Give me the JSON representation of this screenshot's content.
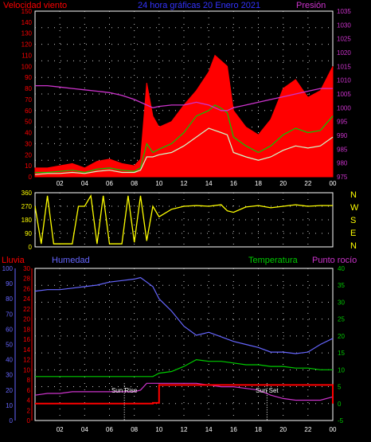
{
  "header": {
    "left": "Velocidad viento",
    "center": "24 hora gráficas   20 Enero 2021",
    "right": "Presión"
  },
  "colors": {
    "wind": "#ff0000",
    "gust": "#ff0000",
    "avg_wind": "#00cc00",
    "wind_white": "#ccffcc",
    "pressure": "#cc33cc",
    "direction": "#ffff00",
    "rain": "#ff0000",
    "humidity": "#6666ff",
    "temperature": "#00cc00",
    "dewpoint": "#cc33cc",
    "grid": "#cccccc",
    "sun": "#ffffff"
  },
  "chart_data": [
    {
      "type": "line",
      "name": "wind-pressure",
      "left_ticks": [
        "0",
        "10",
        "20",
        "30",
        "40",
        "50",
        "60",
        "70",
        "80",
        "90",
        "100",
        "110",
        "120",
        "130",
        "140",
        "150"
      ],
      "right_ticks": [
        "975",
        "980",
        "985",
        "990",
        "995",
        "1000",
        "1005",
        "1010",
        "1015",
        "1020",
        "1025",
        "1030",
        "1035"
      ],
      "x_ticks": [
        "02",
        "04",
        "06",
        "08",
        "10",
        "12",
        "14",
        "16",
        "18",
        "20",
        "22",
        "00"
      ],
      "ylim_left": [
        0,
        150
      ],
      "ylim_right": [
        975,
        1035
      ],
      "x_hours": [
        0,
        1,
        2,
        3,
        4,
        5,
        6,
        7,
        8,
        8.5,
        9,
        9.5,
        10,
        11,
        12,
        13,
        14,
        14.5,
        15,
        15.5,
        16,
        17,
        18,
        19,
        20,
        21,
        22,
        23,
        24
      ],
      "gust": [
        8,
        8,
        10,
        12,
        8,
        14,
        16,
        12,
        10,
        16,
        85,
        55,
        45,
        50,
        65,
        78,
        95,
        110,
        105,
        100,
        60,
        45,
        38,
        52,
        80,
        88,
        72,
        78,
        100
      ],
      "avg_wind": [
        4,
        4,
        5,
        6,
        4,
        7,
        8,
        6,
        5,
        8,
        30,
        22,
        25,
        30,
        40,
        55,
        60,
        65,
        62,
        58,
        36,
        28,
        22,
        28,
        38,
        44,
        40,
        42,
        55
      ],
      "white_wind": [
        2,
        3,
        3,
        4,
        3,
        5,
        6,
        4,
        4,
        6,
        18,
        18,
        20,
        22,
        28,
        36,
        44,
        42,
        40,
        38,
        22,
        18,
        15,
        18,
        24,
        28,
        26,
        28,
        36
      ],
      "pressure": [
        1008,
        1008,
        1007.5,
        1007,
        1006.5,
        1006,
        1005.5,
        1004.5,
        1003,
        1002,
        1001,
        1000,
        1000.5,
        1001,
        1001,
        1002,
        1001,
        1000,
        999,
        999,
        1000,
        1001,
        1002,
        1003,
        1004,
        1005,
        1006,
        1007,
        1007
      ]
    },
    {
      "type": "line",
      "name": "wind-direction",
      "left_ticks": [
        "0",
        "90",
        "180",
        "270",
        "360"
      ],
      "right_labels": [
        "N",
        "W",
        "S",
        "E",
        "N"
      ],
      "ylim": [
        0,
        360
      ],
      "x_hours": [
        0,
        0.5,
        1,
        1.5,
        2,
        3,
        3.5,
        4,
        4.5,
        5,
        5.5,
        6,
        7,
        7.5,
        8,
        8.5,
        9,
        9.5,
        10,
        11,
        12,
        13,
        14,
        15,
        15.5,
        16,
        17,
        18,
        19,
        20,
        21,
        22,
        23,
        24
      ],
      "values": [
        270,
        20,
        340,
        20,
        20,
        20,
        270,
        270,
        340,
        20,
        340,
        20,
        20,
        340,
        30,
        340,
        40,
        270,
        200,
        250,
        270,
        275,
        270,
        280,
        240,
        230,
        265,
        275,
        260,
        270,
        280,
        270,
        275,
        275
      ]
    },
    {
      "type": "line",
      "name": "rain-humidity-temp",
      "header": {
        "rain": "Lluvia",
        "humidity": "Humedad",
        "temperature": "Temperatura",
        "dewpoint": "Punto rocío"
      },
      "humidity_ticks": [
        "0",
        "10",
        "20",
        "30",
        "40",
        "50",
        "60",
        "70",
        "80",
        "90",
        "100"
      ],
      "rain_ticks": [
        "0",
        "2",
        "4",
        "6",
        "8",
        "10",
        "12",
        "14",
        "16",
        "18",
        "20",
        "22",
        "24",
        "26",
        "28",
        "30"
      ],
      "temp_ticks": [
        "-5",
        "0",
        "5",
        "10",
        "15",
        "20",
        "25",
        "30",
        "35",
        "40"
      ],
      "x_ticks": [
        "02",
        "04",
        "06",
        "08",
        "10",
        "12",
        "14",
        "16",
        "18",
        "20",
        "22",
        "00"
      ],
      "ylim_humidity": [
        0,
        100
      ],
      "ylim_temp": [
        -5,
        40
      ],
      "x_hours": [
        0,
        1,
        2,
        3,
        4,
        5,
        6,
        7,
        8,
        8.5,
        9,
        9.5,
        10,
        11,
        12,
        13,
        14,
        15,
        16,
        17,
        18,
        19,
        20,
        21,
        22,
        23,
        24
      ],
      "humidity": [
        85,
        86,
        86,
        87,
        88,
        89,
        91,
        92,
        93,
        94,
        91,
        88,
        80,
        72,
        62,
        56,
        58,
        55,
        52,
        50,
        48,
        45,
        45,
        44,
        45,
        50,
        54
      ],
      "temperature": [
        8,
        8,
        8,
        8,
        8,
        8,
        8,
        8,
        8,
        8,
        8,
        8,
        9,
        9.5,
        11,
        13,
        12.5,
        12.5,
        12,
        11.5,
        11.5,
        11,
        11,
        10.5,
        10.5,
        10,
        10
      ],
      "dewpoint": [
        2.5,
        3,
        3,
        3.5,
        3.5,
        3.5,
        3.5,
        3.5,
        3.5,
        4,
        6,
        6,
        6,
        6,
        6,
        6,
        5.5,
        5,
        5,
        4.5,
        4,
        2.5,
        1.5,
        1,
        1,
        1,
        2
      ],
      "rain": [
        0,
        0,
        0,
        0,
        0,
        0,
        0,
        0,
        0,
        0,
        0,
        0.2,
        5.5,
        5.5,
        5.5,
        5.5,
        5.5,
        5.5,
        5.5,
        5.5,
        5.5,
        5.5,
        5.5,
        5.5,
        5.5,
        5.5,
        0
      ],
      "sunrise_hour": 7.2,
      "sunset_hour": 18.7,
      "sunrise_label": "Sun Rise",
      "sunset_label": "Sun Set"
    }
  ]
}
